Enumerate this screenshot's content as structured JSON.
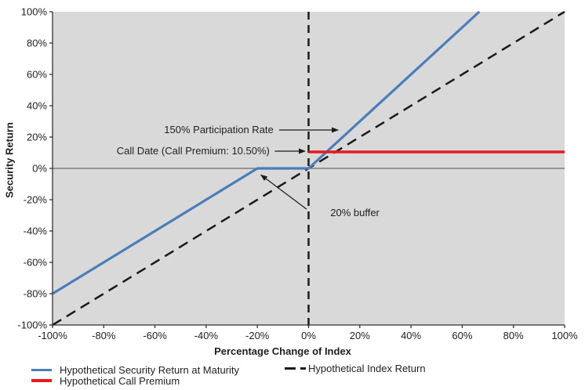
{
  "chart_data": {
    "type": "line",
    "title": "",
    "xlabel": "Percentage Change of Index",
    "ylabel": "Security Return",
    "xlim": [
      -1,
      1
    ],
    "ylim": [
      -1,
      1
    ],
    "grid": false,
    "plot_bg_color": "#d9d9d9",
    "axis_color": "#333333",
    "text_color": "#1f1f1f",
    "x_ticks": [
      {
        "v": -1.0,
        "label": "-100%"
      },
      {
        "v": -0.8,
        "label": "-80%"
      },
      {
        "v": -0.6,
        "label": "-60%"
      },
      {
        "v": -0.4,
        "label": "-40%"
      },
      {
        "v": -0.2,
        "label": "-20%"
      },
      {
        "v": 0.0,
        "label": "0%"
      },
      {
        "v": 0.2,
        "label": "20%"
      },
      {
        "v": 0.4,
        "label": "40%"
      },
      {
        "v": 0.6,
        "label": "60%"
      },
      {
        "v": 0.8,
        "label": "80%"
      },
      {
        "v": 1.0,
        "label": "100%"
      }
    ],
    "y_ticks": [
      {
        "v": 1.0,
        "label": "100%"
      },
      {
        "v": 0.8,
        "label": "80%"
      },
      {
        "v": 0.6,
        "label": "60%"
      },
      {
        "v": 0.4,
        "label": "40%"
      },
      {
        "v": 0.2,
        "label": "20%"
      },
      {
        "v": 0.0,
        "label": "0%"
      },
      {
        "v": -0.2,
        "label": "-20%"
      },
      {
        "v": -0.4,
        "label": "-40%"
      },
      {
        "v": -0.6,
        "label": "-60%"
      },
      {
        "v": -0.8,
        "label": "-80%"
      },
      {
        "v": -1.0,
        "label": "-100%"
      }
    ],
    "reference_lines": [
      {
        "name": "zero-line",
        "axis": "h",
        "value": 0,
        "color": "#6b6b6b",
        "width": 1.2,
        "style": "solid"
      },
      {
        "name": "index-zero-line",
        "axis": "v",
        "value": 0,
        "color": "#1a1a1a",
        "width": 2.5,
        "style": "dashed"
      }
    ],
    "series": [
      {
        "name": "Hypothetical Index Return",
        "color": "#1a1a1a",
        "style": "dashed",
        "width": 2.5,
        "points": [
          [
            -1.0,
            -1.0
          ],
          [
            1.0,
            1.0
          ]
        ]
      },
      {
        "name": "Hypothetical Security Return at Maturity",
        "color": "#4a7ebb",
        "style": "solid",
        "width": 3.2,
        "points": [
          [
            -1.0,
            -0.8
          ],
          [
            -0.2,
            0.0
          ],
          [
            0.0,
            0.0
          ],
          [
            0.6667,
            1.0
          ]
        ]
      },
      {
        "name": "Hypothetical Call Premium",
        "color": "#e8191c",
        "style": "solid",
        "width": 3.5,
        "points": [
          [
            0.0,
            0.105
          ],
          [
            1.0,
            0.105
          ]
        ]
      }
    ],
    "annotations": [
      {
        "text": "150% Participation Rate",
        "align": "right",
        "tx": -0.137,
        "ty": 0.245,
        "arrow": {
          "x1": -0.115,
          "y1": 0.245,
          "x2": 0.115,
          "y2": 0.245
        }
      },
      {
        "text": "Call Date (Call Premium: 10.50%)",
        "align": "right",
        "tx": -0.152,
        "ty": 0.11,
        "arrow": {
          "x1": -0.132,
          "y1": 0.11,
          "x2": -0.014,
          "y2": 0.11
        }
      },
      {
        "text": "20% buffer",
        "align": "left",
        "tx": 0.085,
        "ty": -0.285,
        "arrow": {
          "x1": -0.008,
          "y1": -0.26,
          "x2": -0.186,
          "y2": -0.042
        }
      }
    ],
    "key_values": {
      "participation_rate": "150%",
      "call_premium": "10.50%",
      "buffer": "20%"
    },
    "legend": {
      "position": "bottom",
      "columns": [
        {
          "entries": [
            {
              "label": "Hypothetical Security Return at Maturity",
              "color": "#4a7ebb",
              "style": "solid"
            },
            {
              "label": "Hypothetical Call Premium",
              "color": "#e8191c",
              "style": "solid"
            }
          ]
        },
        {
          "entries": [
            {
              "label": "Hypothetical Index Return",
              "color": "#1a1a1a",
              "style": "dashed"
            }
          ]
        }
      ]
    }
  }
}
